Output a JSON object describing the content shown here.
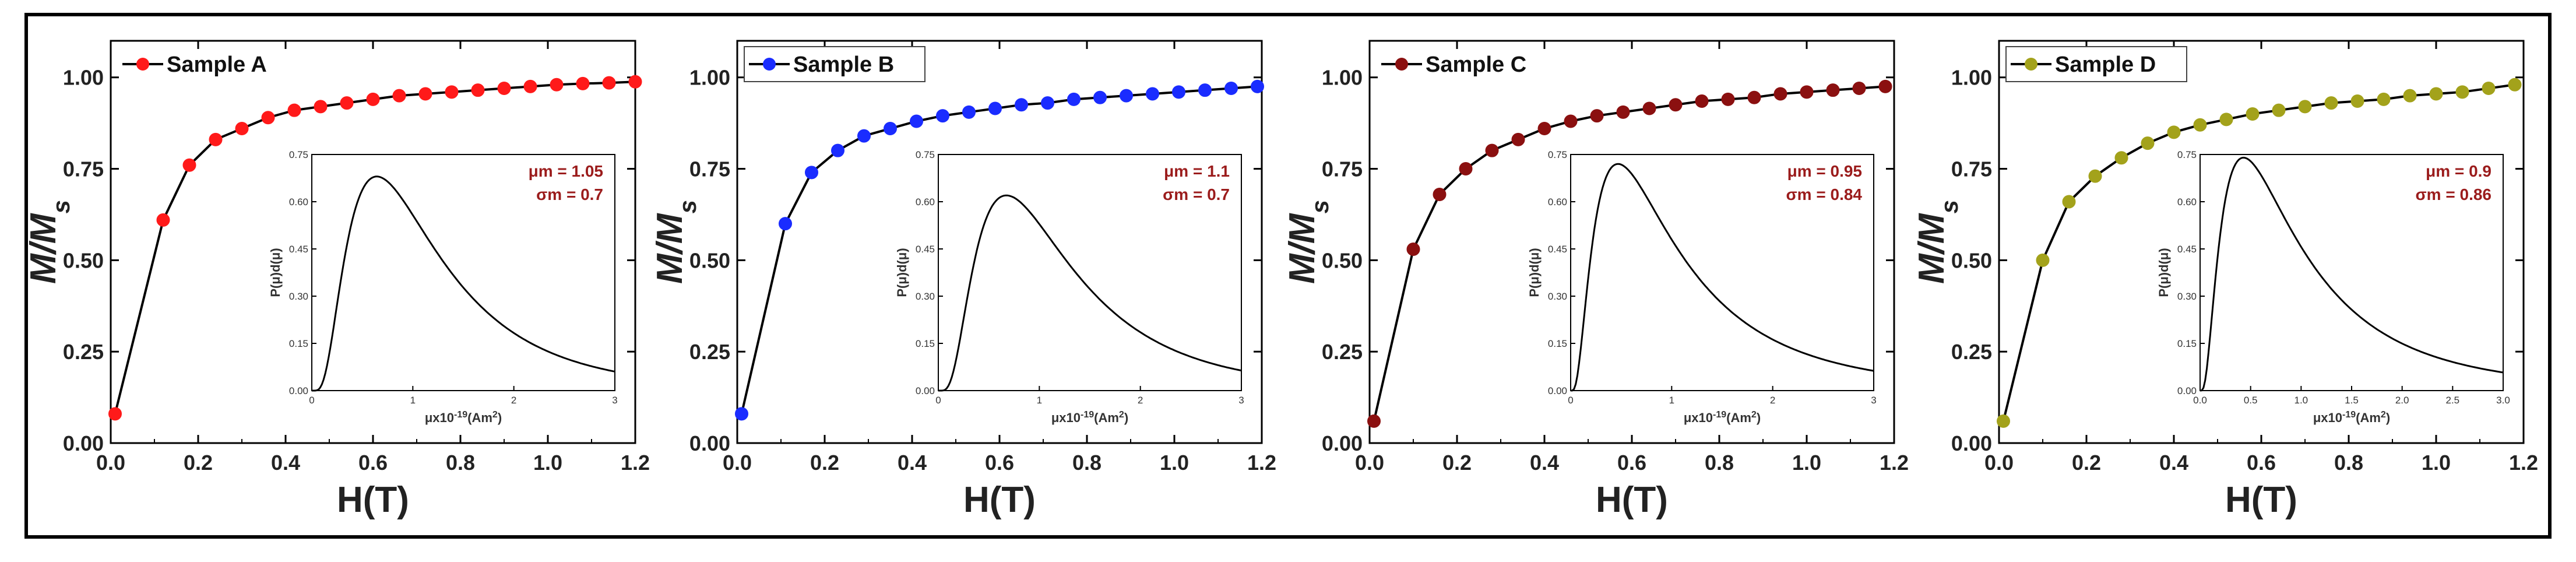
{
  "chart_data": [
    {
      "type": "line",
      "title": "",
      "xlabel": "H(T)",
      "ylabel": "M/M",
      "ylabel_sub": "s",
      "xlim": [
        0,
        1.2
      ],
      "ylim": [
        0,
        1.1
      ],
      "xticks": [
        "0.0",
        "0.2",
        "0.4",
        "0.6",
        "0.8",
        "1.0",
        "1.2"
      ],
      "yticks": [
        "0.00",
        "0.25",
        "0.50",
        "0.75",
        "1.00"
      ],
      "legend": "Sample A",
      "legend_placement": "top-left",
      "marker_color": "#ff1a1a",
      "series": [
        {
          "name": "Sample A",
          "x": [
            0.01,
            0.12,
            0.18,
            0.24,
            0.3,
            0.36,
            0.42,
            0.48,
            0.54,
            0.6,
            0.66,
            0.72,
            0.78,
            0.84,
            0.9,
            0.96,
            1.02,
            1.08,
            1.14,
            1.2
          ],
          "y": [
            0.08,
            0.61,
            0.76,
            0.83,
            0.86,
            0.89,
            0.91,
            0.92,
            0.93,
            0.94,
            0.95,
            0.955,
            0.96,
            0.965,
            0.97,
            0.975,
            0.98,
            0.983,
            0.985,
            0.988
          ]
        }
      ],
      "inset": {
        "xlabel_prefix": "μx10",
        "xlabel_exp": "-19",
        "xlabel_suffix": "(Am",
        "xlabel_unit_exp": "2",
        "xlabel_close": ")",
        "ylabel": "P(μ)d(μ)",
        "xlim": [
          0,
          3
        ],
        "ylim": [
          0,
          0.75
        ],
        "xticks": [
          "0",
          "1",
          "2",
          "3"
        ],
        "yticks": [
          "0.00",
          "0.15",
          "0.30",
          "0.45",
          "0.60",
          "0.75"
        ],
        "mu_text": "μm = 1.05",
        "sigma_text": "σm = 0.7",
        "mu": 1.05,
        "sigma": 0.7,
        "param_color": "#9b1c1c"
      }
    },
    {
      "type": "line",
      "title": "",
      "xlabel": "H(T)",
      "ylabel": "M/M",
      "ylabel_sub": "s",
      "xlim": [
        0,
        1.2
      ],
      "ylim": [
        0,
        1.1
      ],
      "xticks": [
        "0.0",
        "0.2",
        "0.4",
        "0.6",
        "0.8",
        "1.0",
        "1.2"
      ],
      "yticks": [
        "0.00",
        "0.25",
        "0.50",
        "0.75",
        "1.00"
      ],
      "legend": "Sample B",
      "legend_placement": "top-left",
      "marker_color": "#1a2cff",
      "series": [
        {
          "name": "Sample B",
          "x": [
            0.01,
            0.11,
            0.17,
            0.23,
            0.29,
            0.35,
            0.41,
            0.47,
            0.53,
            0.59,
            0.65,
            0.71,
            0.77,
            0.83,
            0.89,
            0.95,
            1.01,
            1.07,
            1.13,
            1.19
          ],
          "y": [
            0.08,
            0.6,
            0.74,
            0.8,
            0.84,
            0.86,
            0.88,
            0.895,
            0.905,
            0.915,
            0.925,
            0.93,
            0.94,
            0.945,
            0.95,
            0.955,
            0.96,
            0.965,
            0.97,
            0.975
          ]
        }
      ],
      "inset": {
        "xlabel_prefix": "μx10",
        "xlabel_exp": "-19",
        "xlabel_suffix": "(Am",
        "xlabel_unit_exp": "2",
        "xlabel_close": ")",
        "ylabel": "P(μ)d(μ)",
        "xlim": [
          0,
          3
        ],
        "ylim": [
          0,
          0.75
        ],
        "xticks": [
          "0",
          "1",
          "2",
          "3"
        ],
        "yticks": [
          "0.00",
          "0.15",
          "0.30",
          "0.45",
          "0.60",
          "0.75"
        ],
        "mu_text": "μm = 1.1",
        "sigma_text": "σm = 0.7",
        "mu": 1.1,
        "sigma": 0.7,
        "param_color": "#9b1c1c"
      }
    },
    {
      "type": "line",
      "title": "",
      "xlabel": "H(T)",
      "ylabel": "M/M",
      "ylabel_sub": "s",
      "xlim": [
        0,
        1.2
      ],
      "ylim": [
        0,
        1.1
      ],
      "xticks": [
        "0.0",
        "0.2",
        "0.4",
        "0.6",
        "0.8",
        "1.0",
        "1.2"
      ],
      "yticks": [
        "0.00",
        "0.25",
        "0.50",
        "0.75",
        "1.00"
      ],
      "legend": "Sample C",
      "legend_placement": "top-left",
      "marker_color": "#8b1010",
      "series": [
        {
          "name": "Sample C",
          "x": [
            0.01,
            0.1,
            0.16,
            0.22,
            0.28,
            0.34,
            0.4,
            0.46,
            0.52,
            0.58,
            0.64,
            0.7,
            0.76,
            0.82,
            0.88,
            0.94,
            1.0,
            1.06,
            1.12,
            1.18
          ],
          "y": [
            0.06,
            0.53,
            0.68,
            0.75,
            0.8,
            0.83,
            0.86,
            0.88,
            0.895,
            0.905,
            0.915,
            0.925,
            0.935,
            0.94,
            0.945,
            0.955,
            0.96,
            0.965,
            0.97,
            0.975
          ]
        }
      ],
      "inset": {
        "xlabel_prefix": "μx10",
        "xlabel_exp": "-19",
        "xlabel_suffix": "(Am",
        "xlabel_unit_exp": "2",
        "xlabel_close": ")",
        "ylabel": "P(μ)d(μ)",
        "xlim": [
          0,
          3
        ],
        "ylim": [
          0,
          0.75
        ],
        "xticks": [
          "0",
          "1",
          "2",
          "3"
        ],
        "yticks": [
          "0.00",
          "0.15",
          "0.30",
          "0.45",
          "0.60",
          "0.75"
        ],
        "mu_text": "μm = 0.95",
        "sigma_text": "σm = 0.84",
        "mu": 0.95,
        "sigma": 0.84,
        "param_color": "#9b1c1c"
      }
    },
    {
      "type": "line",
      "title": "",
      "xlabel": "H(T)",
      "ylabel": "M/M",
      "ylabel_sub": "s",
      "xlim": [
        0,
        1.2
      ],
      "ylim": [
        0,
        1.1
      ],
      "xticks": [
        "0.0",
        "0.2",
        "0.4",
        "0.6",
        "0.8",
        "1.0",
        "1.2"
      ],
      "yticks": [
        "0.00",
        "0.25",
        "0.50",
        "0.75",
        "1.00"
      ],
      "legend": "Sample D",
      "legend_placement": "top-left",
      "marker_color": "#a3a21b",
      "series": [
        {
          "name": "Sample D",
          "x": [
            0.01,
            0.1,
            0.16,
            0.22,
            0.28,
            0.34,
            0.4,
            0.46,
            0.52,
            0.58,
            0.64,
            0.7,
            0.76,
            0.82,
            0.88,
            0.94,
            1.0,
            1.06,
            1.12,
            1.18
          ],
          "y": [
            0.06,
            0.5,
            0.66,
            0.73,
            0.78,
            0.82,
            0.85,
            0.87,
            0.885,
            0.9,
            0.91,
            0.92,
            0.93,
            0.935,
            0.94,
            0.95,
            0.955,
            0.96,
            0.97,
            0.98
          ]
        }
      ],
      "inset": {
        "xlabel_prefix": "μx10",
        "xlabel_exp": "-19",
        "xlabel_suffix": "(Am",
        "xlabel_unit_exp": "2",
        "xlabel_close": ")",
        "ylabel": "P(μ)d(μ)",
        "xlim": [
          0,
          3
        ],
        "ylim": [
          0,
          0.75
        ],
        "xticks": [
          "0.0",
          "0.5",
          "1.0",
          "1.5",
          "2.0",
          "2.5",
          "3.0"
        ],
        "yticks": [
          "0.00",
          "0.15",
          "0.30",
          "0.45",
          "0.60",
          "0.75"
        ],
        "mu_text": "μm = 0.9",
        "sigma_text": "σm = 0.86",
        "mu": 0.9,
        "sigma": 0.86,
        "param_color": "#9b1c1c"
      }
    }
  ]
}
